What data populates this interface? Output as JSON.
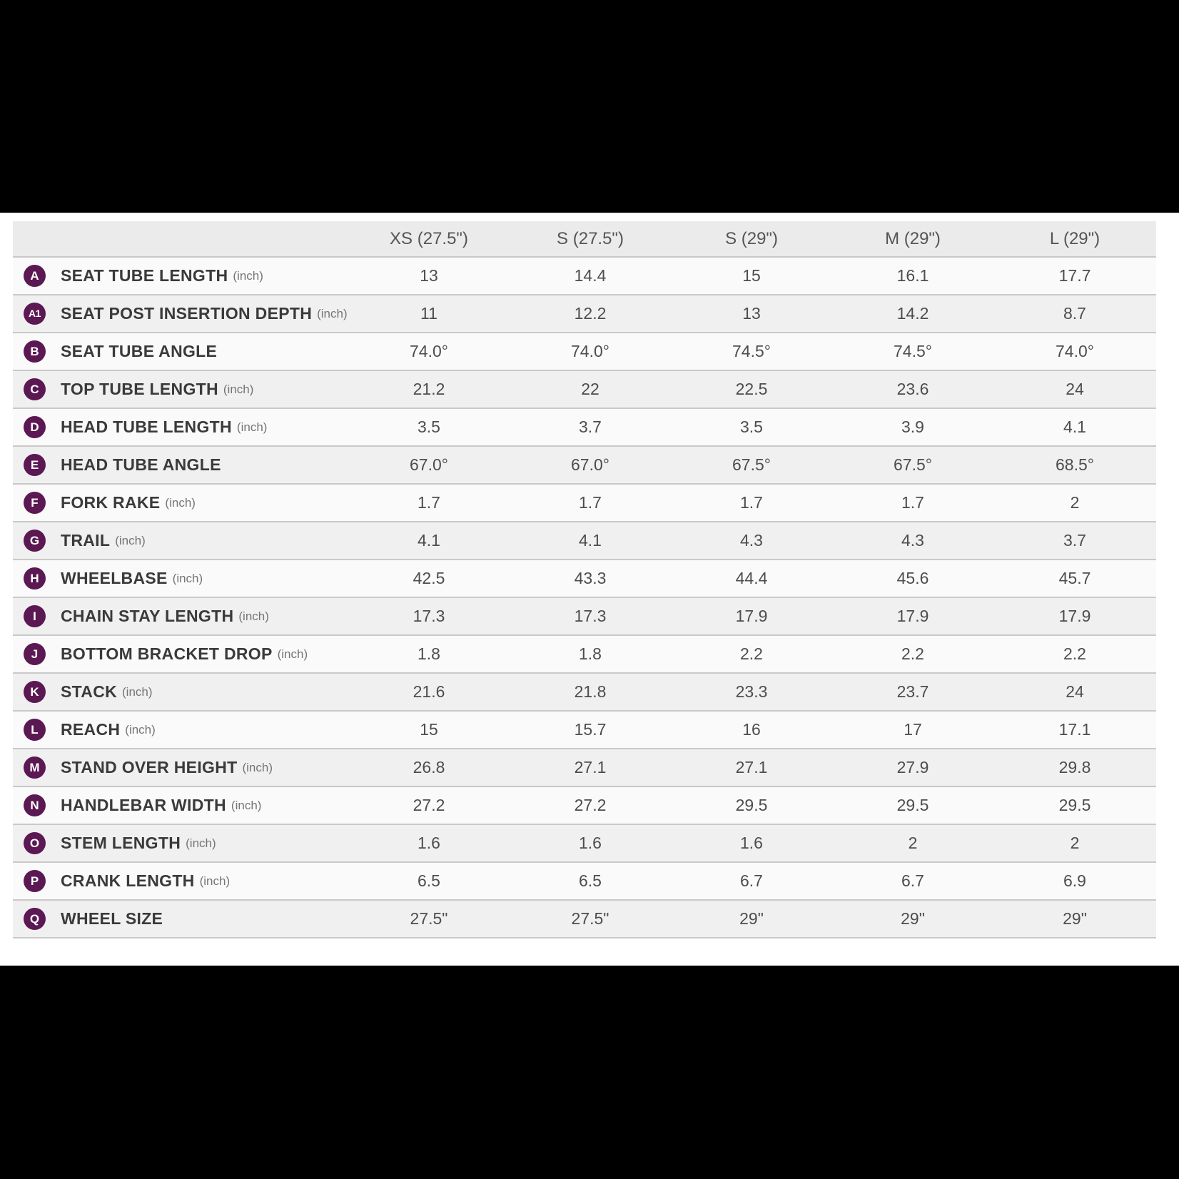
{
  "table": {
    "columns": [
      "XS (27.5\")",
      "S (27.5\")",
      "S (29\")",
      "M (29\")",
      "L (29\")"
    ],
    "rows": [
      {
        "badge": "A",
        "label": "SEAT TUBE LENGTH",
        "unit": "(inch)",
        "values": [
          "13",
          "14.4",
          "15",
          "16.1",
          "17.7"
        ]
      },
      {
        "badge": "A1",
        "label": "SEAT POST INSERTION DEPTH",
        "unit": "(inch)",
        "values": [
          "11",
          "12.2",
          "13",
          "14.2",
          "8.7"
        ]
      },
      {
        "badge": "B",
        "label": "SEAT TUBE ANGLE",
        "unit": "",
        "values": [
          "74.0°",
          "74.0°",
          "74.5°",
          "74.5°",
          "74.0°"
        ]
      },
      {
        "badge": "C",
        "label": "TOP TUBE LENGTH",
        "unit": "(inch)",
        "values": [
          "21.2",
          "22",
          "22.5",
          "23.6",
          "24"
        ]
      },
      {
        "badge": "D",
        "label": "HEAD TUBE LENGTH",
        "unit": "(inch)",
        "values": [
          "3.5",
          "3.7",
          "3.5",
          "3.9",
          "4.1"
        ]
      },
      {
        "badge": "E",
        "label": "HEAD TUBE ANGLE",
        "unit": "",
        "values": [
          "67.0°",
          "67.0°",
          "67.5°",
          "67.5°",
          "68.5°"
        ]
      },
      {
        "badge": "F",
        "label": "FORK RAKE",
        "unit": "(inch)",
        "values": [
          "1.7",
          "1.7",
          "1.7",
          "1.7",
          "2"
        ]
      },
      {
        "badge": "G",
        "label": "TRAIL",
        "unit": "(inch)",
        "values": [
          "4.1",
          "4.1",
          "4.3",
          "4.3",
          "3.7"
        ]
      },
      {
        "badge": "H",
        "label": "WHEELBASE",
        "unit": "(inch)",
        "values": [
          "42.5",
          "43.3",
          "44.4",
          "45.6",
          "45.7"
        ]
      },
      {
        "badge": "I",
        "label": "CHAIN STAY LENGTH",
        "unit": "(inch)",
        "values": [
          "17.3",
          "17.3",
          "17.9",
          "17.9",
          "17.9"
        ]
      },
      {
        "badge": "J",
        "label": "BOTTOM BRACKET DROP",
        "unit": "(inch)",
        "values": [
          "1.8",
          "1.8",
          "2.2",
          "2.2",
          "2.2"
        ]
      },
      {
        "badge": "K",
        "label": "STACK",
        "unit": "(inch)",
        "values": [
          "21.6",
          "21.8",
          "23.3",
          "23.7",
          "24"
        ]
      },
      {
        "badge": "L",
        "label": "REACH",
        "unit": "(inch)",
        "values": [
          "15",
          "15.7",
          "16",
          "17",
          "17.1"
        ]
      },
      {
        "badge": "M",
        "label": "STAND OVER HEIGHT",
        "unit": "(inch)",
        "values": [
          "26.8",
          "27.1",
          "27.1",
          "27.9",
          "29.8"
        ]
      },
      {
        "badge": "N",
        "label": "HANDLEBAR WIDTH",
        "unit": "(inch)",
        "values": [
          "27.2",
          "27.2",
          "29.5",
          "29.5",
          "29.5"
        ]
      },
      {
        "badge": "O",
        "label": "STEM LENGTH",
        "unit": "(inch)",
        "values": [
          "1.6",
          "1.6",
          "1.6",
          "2",
          "2"
        ]
      },
      {
        "badge": "P",
        "label": "CRANK LENGTH",
        "unit": "(inch)",
        "values": [
          "6.5",
          "6.5",
          "6.7",
          "6.7",
          "6.9"
        ]
      },
      {
        "badge": "Q",
        "label": "WHEEL SIZE",
        "unit": "",
        "values": [
          "27.5\"",
          "27.5\"",
          "29\"",
          "29\"",
          "29\""
        ]
      }
    ],
    "colors": {
      "badge": "#5b1853",
      "header_bg": "#ebebeb",
      "row_odd": "#fafafa",
      "row_even": "#f0f0f0",
      "border": "#c9c9c9"
    }
  }
}
